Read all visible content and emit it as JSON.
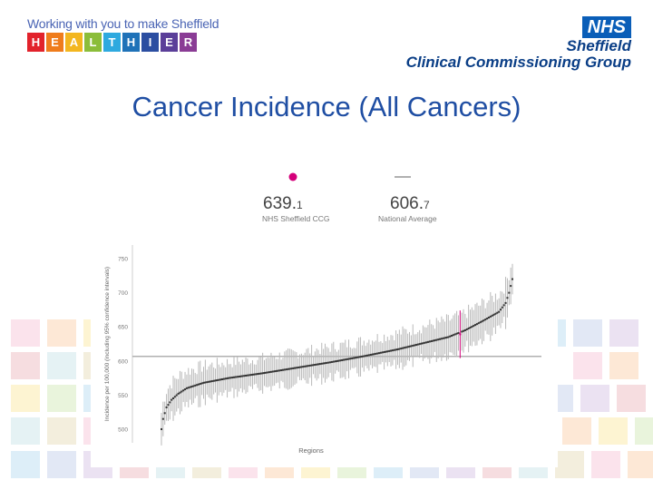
{
  "header": {
    "tagline": "Working with you to make Sheffield",
    "brand_letters": [
      {
        "char": "H",
        "color": "#e2222b"
      },
      {
        "char": "E",
        "color": "#ef7c1c"
      },
      {
        "char": "A",
        "color": "#f3b61f"
      },
      {
        "char": "L",
        "color": "#8bbd3a"
      },
      {
        "char": "T",
        "color": "#2ea9df"
      },
      {
        "char": "H",
        "color": "#1f72b8"
      },
      {
        "char": "I",
        "color": "#2b4ea1"
      },
      {
        "char": "E",
        "color": "#5b3f99"
      },
      {
        "char": "R",
        "color": "#8a3c95"
      }
    ],
    "nhs_logo": "NHS",
    "org_line1": "Sheffield",
    "org_line2": "Clinical Commissioning Group"
  },
  "page_title": "Cancer Incidence (All Cancers)",
  "colors": {
    "title": "#1f4ea3",
    "highlight": "#d4007a",
    "series": "#333333",
    "error_bars": "#b9b9b9",
    "national_line": "#b0b0b0"
  },
  "legend": {
    "sheffield_value": "639.",
    "sheffield_value_decimal": "1",
    "sheffield_label": "NHS Sheffield CCG",
    "national_value": "606.",
    "national_value_decimal": "7",
    "national_label": "National Average"
  },
  "chart_data": {
    "type": "scatter",
    "title": "",
    "xlabel": "Regions",
    "ylabel": "Incidence per 100,000 (including 95% confidence intervals)",
    "ylim": [
      480,
      770
    ],
    "yticks": [
      500,
      550,
      600,
      650,
      700,
      750
    ],
    "grid": false,
    "national_average": 606.7,
    "highlight": {
      "name": "NHS Sheffield CCG",
      "value": 639.1
    },
    "n_regions": 209,
    "curve": [
      [
        0,
        500
      ],
      [
        1,
        515
      ],
      [
        3,
        532
      ],
      [
        6,
        543
      ],
      [
        10,
        552
      ],
      [
        15,
        560
      ],
      [
        25,
        568
      ],
      [
        40,
        575
      ],
      [
        60,
        582
      ],
      [
        80,
        590
      ],
      [
        100,
        598
      ],
      [
        120,
        607
      ],
      [
        140,
        617
      ],
      [
        160,
        629
      ],
      [
        170,
        635
      ],
      [
        180,
        645
      ],
      [
        190,
        658
      ],
      [
        200,
        672
      ],
      [
        204,
        685
      ],
      [
        206,
        700
      ],
      [
        208,
        720
      ]
    ],
    "ci_halfwidth": [
      [
        0,
        24
      ],
      [
        10,
        26
      ],
      [
        50,
        22
      ],
      [
        100,
        22
      ],
      [
        150,
        24
      ],
      [
        200,
        26
      ],
      [
        208,
        30
      ]
    ]
  }
}
